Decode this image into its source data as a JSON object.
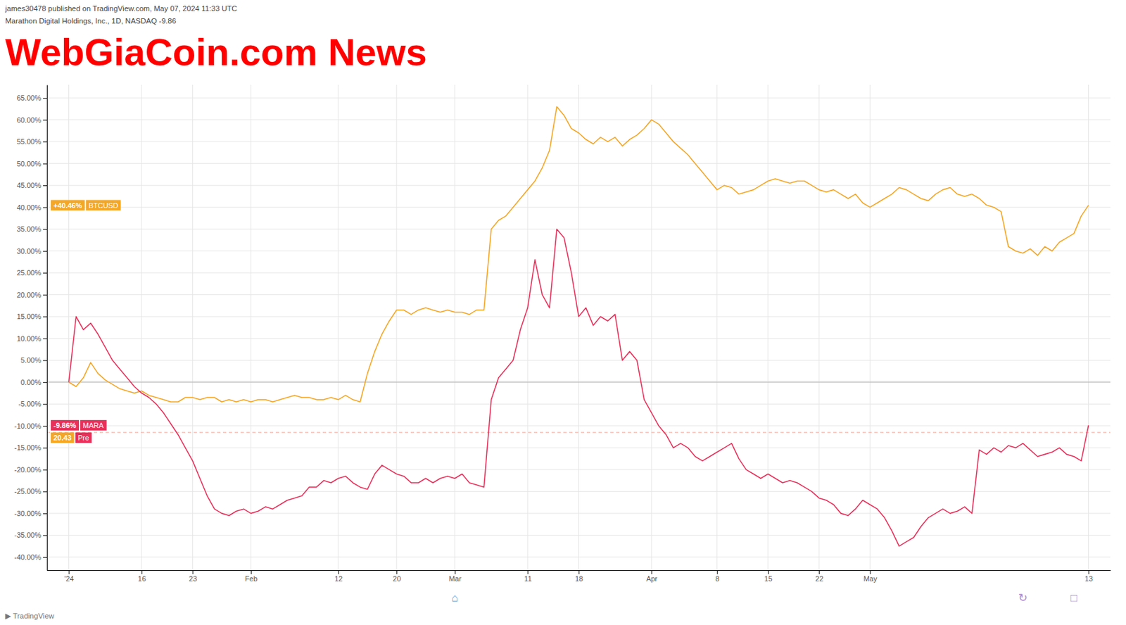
{
  "chart_data": {
    "type": "line",
    "title": "james30478 published on TradingView.com, May 07, 2024 11:33 UTC",
    "subtitle": "Marathon Digital Holdings, Inc., 1D, NASDAQ  -9.86",
    "watermark": {
      "text": "WebGiaCoin.com News",
      "color": "red"
    },
    "footer": "▶ TradingView",
    "grid": true,
    "categories": [
      "'24",
      null,
      null,
      null,
      null,
      null,
      null,
      null,
      null,
      null,
      "16",
      null,
      null,
      null,
      null,
      null,
      null,
      "23",
      null,
      null,
      null,
      null,
      null,
      null,
      null,
      "Feb",
      null,
      null,
      null,
      null,
      null,
      null,
      null,
      null,
      null,
      null,
      null,
      "12",
      null,
      null,
      null,
      null,
      null,
      null,
      null,
      "20",
      null,
      null,
      null,
      null,
      null,
      null,
      null,
      "Mar",
      null,
      null,
      null,
      null,
      null,
      null,
      null,
      null,
      null,
      "11",
      null,
      null,
      null,
      null,
      null,
      null,
      "18",
      null,
      null,
      null,
      null,
      null,
      null,
      null,
      null,
      null,
      "Apr",
      null,
      null,
      null,
      null,
      null,
      null,
      null,
      null,
      "8",
      null,
      null,
      null,
      null,
      null,
      null,
      "15",
      null,
      null,
      null,
      null,
      null,
      null,
      "22",
      null,
      null,
      null,
      null,
      null,
      null,
      "May",
      null,
      null,
      null,
      null,
      null,
      null,
      null,
      null,
      null,
      null,
      null,
      null,
      null,
      null,
      null,
      null,
      null,
      null,
      null,
      null,
      null,
      null,
      null,
      null,
      null,
      null,
      null,
      null,
      null,
      "13"
    ],
    "ylim": [
      -43,
      68
    ],
    "yticks": [
      {
        "value": -40,
        "label": "-40.00%"
      },
      {
        "value": -35,
        "label": "-35.00%"
      },
      {
        "value": -30,
        "label": "-30.00%"
      },
      {
        "value": -25,
        "label": "-25.00%"
      },
      {
        "value": -20,
        "label": "-20.00%"
      },
      {
        "value": -15,
        "label": "-15.00%"
      },
      {
        "value": -10,
        "label": "-10.00%"
      },
      {
        "value": -5,
        "label": "-5.00%"
      },
      {
        "value": 0,
        "label": "0.00%"
      },
      {
        "value": 5,
        "label": "5.00%"
      },
      {
        "value": 10,
        "label": "10.00%"
      },
      {
        "value": 15,
        "label": "15.00%"
      },
      {
        "value": 20,
        "label": "20.00%"
      },
      {
        "value": 25,
        "label": "25.00%"
      },
      {
        "value": 30,
        "label": "30.00%"
      },
      {
        "value": 35,
        "label": "35.00%"
      },
      {
        "value": 40,
        "label": "40.00%"
      },
      {
        "value": 45,
        "label": "45.00%"
      },
      {
        "value": 50,
        "label": "50.00%"
      },
      {
        "value": 55,
        "label": "55.00%"
      },
      {
        "value": 60,
        "label": "60.00%"
      },
      {
        "value": 65,
        "label": "65.00%"
      }
    ],
    "series": [
      {
        "name": "BTCUSD",
        "color": "#f5a623",
        "values": [
          0.0,
          -1.0,
          1.0,
          4.5,
          2.0,
          0.5,
          -0.5,
          -1.5,
          -2.0,
          -2.5,
          -2.0,
          -3.0,
          -3.5,
          -4.0,
          -4.5,
          -4.5,
          -3.5,
          -3.5,
          -4.0,
          -3.5,
          -3.5,
          -4.5,
          -4.0,
          -4.5,
          -4.0,
          -4.5,
          -4.0,
          -4.0,
          -4.5,
          -4.0,
          -3.5,
          -3.0,
          -3.5,
          -3.5,
          -4.0,
          -4.0,
          -3.5,
          -4.0,
          -3.0,
          -4.0,
          -4.5,
          2.0,
          7.0,
          11.0,
          14.0,
          16.5,
          16.5,
          15.5,
          16.5,
          17.0,
          16.5,
          16.0,
          16.5,
          16.0,
          16.0,
          15.5,
          16.5,
          16.5,
          35.0,
          37.0,
          38.0,
          40.0,
          42.0,
          44.0,
          46.0,
          49.0,
          53.0,
          63.0,
          61.0,
          58.0,
          57.0,
          55.5,
          54.5,
          56.0,
          55.0,
          56.0,
          54.0,
          55.5,
          56.5,
          58.0,
          60.0,
          59.0,
          57.0,
          55.0,
          53.5,
          52.0,
          50.0,
          48.0,
          46.0,
          44.0,
          45.0,
          44.5,
          43.0,
          43.5,
          44.0,
          45.0,
          46.0,
          46.5,
          46.0,
          45.5,
          46.0,
          46.0,
          45.0,
          44.0,
          43.5,
          44.0,
          43.0,
          42.0,
          43.0,
          41.0,
          40.0,
          41.0,
          42.0,
          43.0,
          44.5,
          44.0,
          43.0,
          42.0,
          41.5,
          43.0,
          44.0,
          44.5,
          43.0,
          42.5,
          43.0,
          42.0,
          40.5,
          40.0,
          39.0,
          31.0,
          30.0,
          29.5,
          30.5,
          29.0,
          31.0,
          30.0,
          32.0,
          33.0,
          34.0,
          38.0,
          40.46
        ]
      },
      {
        "name": "MARA",
        "color": "#e8305a",
        "values": [
          0.0,
          15.0,
          12.0,
          13.5,
          11.0,
          8.0,
          5.0,
          3.0,
          1.0,
          -1.0,
          -2.5,
          -3.5,
          -5.0,
          -7.0,
          -9.5,
          -12.0,
          -15.0,
          -18.0,
          -22.0,
          -26.0,
          -29.0,
          -30.0,
          -30.5,
          -29.5,
          -29.0,
          -30.0,
          -29.5,
          -28.5,
          -29.0,
          -28.0,
          -27.0,
          -26.5,
          -26.0,
          -24.0,
          -24.0,
          -22.5,
          -23.0,
          -22.0,
          -21.5,
          -23.0,
          -24.0,
          -24.5,
          -21.0,
          -19.0,
          -20.0,
          -21.0,
          -21.5,
          -23.0,
          -23.0,
          -22.0,
          -23.0,
          -22.0,
          -21.5,
          -22.0,
          -21.0,
          -23.0,
          -23.5,
          -24.0,
          -4.0,
          1.0,
          3.0,
          5.0,
          12.0,
          17.0,
          28.0,
          20.0,
          17.0,
          35.0,
          33.0,
          25.0,
          15.0,
          17.0,
          13.0,
          15.0,
          14.0,
          15.5,
          5.0,
          7.0,
          5.0,
          -4.0,
          -7.0,
          -10.0,
          -12.0,
          -15.0,
          -14.0,
          -15.0,
          -17.0,
          -18.0,
          -17.0,
          -16.0,
          -15.0,
          -14.0,
          -17.5,
          -20.0,
          -21.0,
          -22.0,
          -21.0,
          -22.0,
          -23.0,
          -22.5,
          -23.0,
          -24.0,
          -25.0,
          -26.5,
          -27.0,
          -28.0,
          -30.0,
          -30.5,
          -29.0,
          -27.0,
          -28.0,
          -29.0,
          -31.0,
          -34.0,
          -37.5,
          -36.5,
          -35.5,
          -33.0,
          -31.0,
          -30.0,
          -29.0,
          -30.0,
          -29.5,
          -28.5,
          -30.0,
          -15.5,
          -16.5,
          -15.0,
          -16.0,
          -14.5,
          -15.0,
          -14.0,
          -15.5,
          -17.0,
          -16.5,
          -16.0,
          -15.0,
          -16.5,
          -17.0,
          -18.0,
          -9.86
        ]
      }
    ],
    "reference_lines": [
      {
        "y": 0,
        "color": "#aaaaaa",
        "line_style": "solid"
      },
      {
        "y": -11.5,
        "color": "#f5a090",
        "line_style": "dashed"
      }
    ],
    "annotations": [
      {
        "y": 40.46,
        "texts": [
          "+40.46%",
          "BTCUSD"
        ],
        "colors": [
          "#f5a623",
          "#f5a623"
        ]
      },
      {
        "y": -9.86,
        "texts": [
          "-9.86%",
          "MARA"
        ],
        "colors": [
          "#e8305a",
          "#e8305a"
        ]
      },
      {
        "y": -11.5,
        "texts": [
          "20.43",
          "Pre"
        ],
        "colors": [
          "#f5a623",
          "#e8305a"
        ]
      }
    ],
    "icons": [
      {
        "text": "⌂",
        "color": "#5599cc",
        "x": 53
      },
      {
        "text": "↻",
        "color": "#aa88cc",
        "x": 131
      },
      {
        "text": "□",
        "color": "#aa88cc",
        "x": 138
      }
    ]
  }
}
